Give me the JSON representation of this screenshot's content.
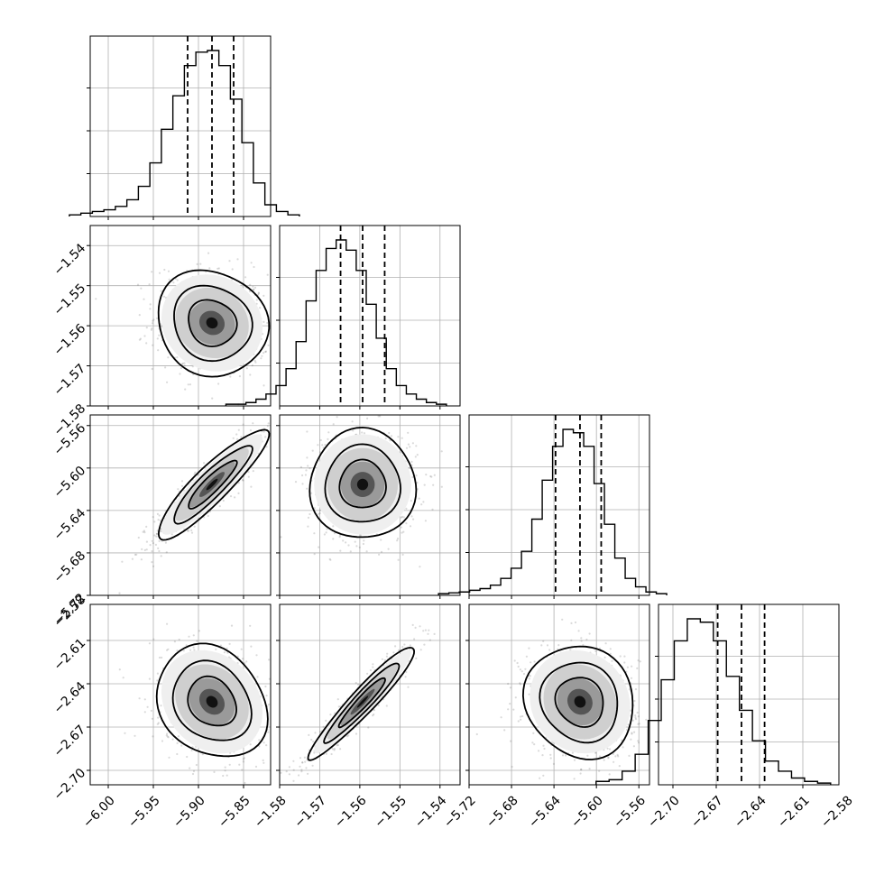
{
  "chart_data": {
    "type": "corner",
    "title": "",
    "grid": true,
    "parameters": [
      {
        "range": [
          -6.02,
          -5.82
        ],
        "ticks": [
          -6.0,
          -5.95,
          -5.9,
          -5.85
        ],
        "tick_labels": [
          "−6.00",
          "−5.95",
          "−5.90",
          "−5.85"
        ],
        "quantiles": [
          -5.912,
          -5.885,
          -5.861
        ],
        "histogram": [
          1,
          2,
          3,
          4,
          6,
          10,
          18,
          32,
          52,
          72,
          90,
          98,
          99,
          90,
          70,
          44,
          20,
          7,
          3,
          1
        ]
      },
      {
        "range": [
          -1.58,
          -1.535
        ],
        "ticks": [
          -1.58,
          -1.57,
          -1.56,
          -1.55,
          -1.54
        ],
        "tick_labels": [
          "−1.58",
          "−1.57",
          "−1.56",
          "−1.55",
          "−1.54"
        ],
        "quantiles": [
          -1.5648,
          -1.5593,
          -1.5538
        ],
        "histogram": [
          1,
          1,
          2,
          4,
          7,
          12,
          22,
          38,
          62,
          80,
          93,
          98,
          92,
          80,
          60,
          40,
          22,
          12,
          7,
          4,
          2,
          1
        ]
      },
      {
        "range": [
          -5.72,
          -5.55
        ],
        "ticks": [
          -5.72,
          -5.68,
          -5.64,
          -5.6,
          -5.56
        ],
        "tick_labels": [
          "−5.72",
          "−5.68",
          "−5.64",
          "−5.60",
          "−5.56"
        ],
        "quantiles": [
          -5.6385,
          -5.6155,
          -5.5955
        ],
        "histogram": [
          1,
          1.5,
          2,
          3,
          4,
          6,
          10,
          16,
          26,
          45,
          68,
          88,
          98,
          96,
          88,
          66,
          42,
          22,
          10,
          5,
          2,
          1
        ]
      },
      {
        "range": [
          -2.71,
          -2.585
        ],
        "ticks": [
          -2.7,
          -2.67,
          -2.64,
          -2.61,
          -2.58
        ],
        "tick_labels": [
          "−2.70",
          "−2.67",
          "−2.64",
          "−2.61",
          "−2.58"
        ],
        "quantiles": [
          -2.669,
          -2.6525,
          -2.6365
        ],
        "histogram": [
          2,
          3,
          8,
          18,
          38,
          62,
          85,
          98,
          96,
          85,
          64,
          44,
          26,
          14,
          8,
          4,
          2,
          1
        ]
      }
    ],
    "correlations": {
      "1,0": -0.1,
      "2,0": 0.9,
      "2,1": 0.0,
      "3,0": -0.2,
      "3,1": 0.95,
      "3,2": -0.1
    }
  }
}
